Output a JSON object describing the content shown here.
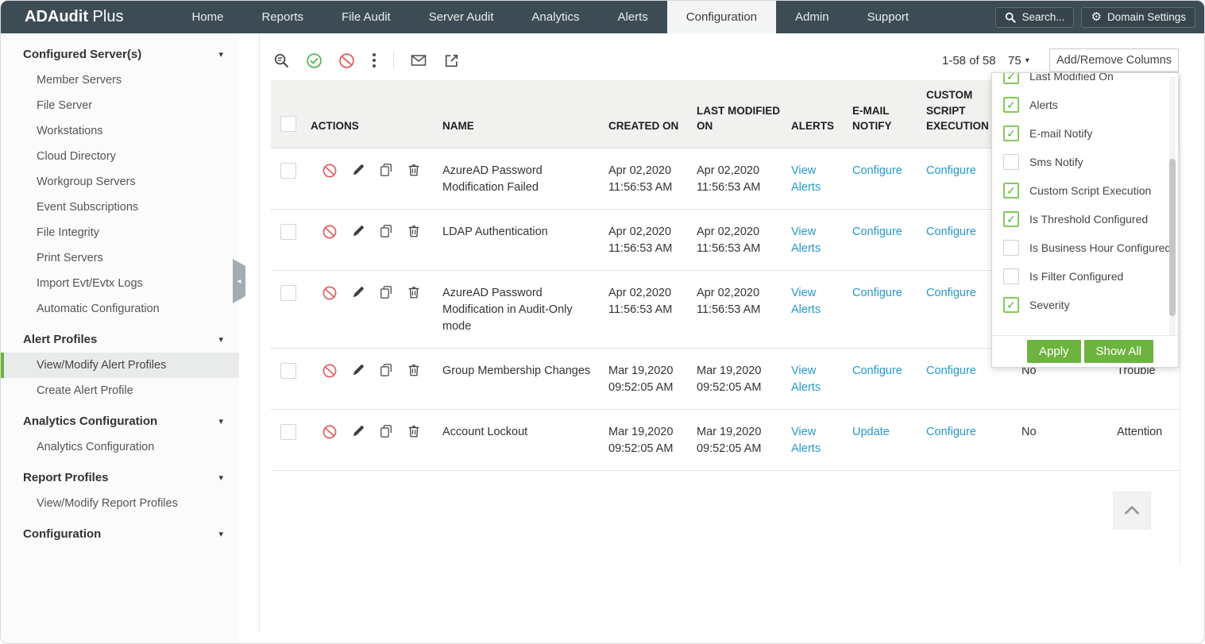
{
  "colors": {
    "navbar": "#3d4c54",
    "accent_green": "#6db33f",
    "link_blue": "#2598cc",
    "danger_red": "#e05f5f"
  },
  "navbar": {
    "brand_bold": "ADAudit",
    "brand_light": "Plus",
    "items": [
      {
        "label": "Home"
      },
      {
        "label": "Reports"
      },
      {
        "label": "File Audit"
      },
      {
        "label": "Server Audit"
      },
      {
        "label": "Analytics"
      },
      {
        "label": "Alerts"
      },
      {
        "label": "Configuration",
        "active": true
      },
      {
        "label": "Admin"
      },
      {
        "label": "Support"
      }
    ],
    "search_placeholder": "Search...",
    "domain_settings_label": "Domain Settings"
  },
  "sidebar": {
    "sections": [
      {
        "label": "Configured Server(s)",
        "items": [
          "Member Servers",
          "File Server",
          "Workstations",
          "Cloud Directory",
          "Workgroup Servers",
          "Event Subscriptions",
          "File Integrity",
          "Print Servers",
          "Import Evt/Evtx Logs",
          "Automatic Configuration"
        ]
      },
      {
        "label": "Alert Profiles",
        "items": [
          "View/Modify Alert Profiles",
          "Create Alert Profile"
        ],
        "selected": "View/Modify Alert Profiles"
      },
      {
        "label": "Analytics Configuration",
        "items": [
          "Analytics Configuration"
        ]
      },
      {
        "label": "Report Profiles",
        "items": [
          "View/Modify Report Profiles"
        ]
      },
      {
        "label": "Configuration",
        "items": []
      }
    ]
  },
  "toolbar": {
    "pagination": "1-58 of 58",
    "page_size": "75",
    "add_remove_columns_label": "Add/Remove Columns",
    "icons": [
      "filter-search-icon",
      "enable-check-icon",
      "disable-block-icon",
      "more-kebab-icon",
      "email-icon",
      "export-icon"
    ]
  },
  "table": {
    "headers": [
      "ACTIONS",
      "NAME",
      "CREATED ON",
      "LAST MODIFIED ON",
      "ALERTS",
      "E-MAIL NOTIFY",
      "CUSTOM SCRIPT EXECUTION"
    ],
    "rows": [
      {
        "name": "AzureAD Password Modification Failed",
        "created_on": "Apr 02,2020 11:56:53 AM",
        "last_modified_on": "Apr 02,2020 11:56:53 AM",
        "alerts": "View Alerts",
        "email_notify": "Configure",
        "custom_script": "Configure",
        "threshold": "",
        "severity": ""
      },
      {
        "name": "LDAP Authentication",
        "created_on": "Apr 02,2020 11:56:53 AM",
        "last_modified_on": "Apr 02,2020 11:56:53 AM",
        "alerts": "View Alerts",
        "email_notify": "Configure",
        "custom_script": "Configure",
        "threshold": "",
        "severity": ""
      },
      {
        "name": "AzureAD Password Modification in Audit-Only mode",
        "created_on": "Apr 02,2020 11:56:53 AM",
        "last_modified_on": "Apr 02,2020 11:56:53 AM",
        "alerts": "View Alerts",
        "email_notify": "Configure",
        "custom_script": "Configure",
        "threshold": "",
        "severity": ""
      },
      {
        "name": "Group Membership Changes",
        "created_on": "Mar 19,2020 09:52:05 AM",
        "last_modified_on": "Mar 19,2020 09:52:05 AM",
        "alerts": "View Alerts",
        "email_notify": "Configure",
        "custom_script": "Configure",
        "threshold": "No",
        "severity": "Trouble"
      },
      {
        "name": "Account Lockout",
        "created_on": "Mar 19,2020 09:52:05 AM",
        "last_modified_on": "Mar 19,2020 09:52:05 AM",
        "alerts": "View Alerts",
        "email_notify": "Update",
        "custom_script": "Configure",
        "threshold": "No",
        "severity": "Attention"
      }
    ]
  },
  "columns_dropdown": {
    "items": [
      {
        "label": "Last Modified On",
        "checked": true
      },
      {
        "label": "Alerts",
        "checked": true
      },
      {
        "label": "E-mail Notify",
        "checked": true
      },
      {
        "label": "Sms Notify",
        "checked": false
      },
      {
        "label": "Custom Script Execution",
        "checked": true
      },
      {
        "label": "Is Threshold Configured",
        "checked": true
      },
      {
        "label": "Is Business Hour Configured",
        "checked": false
      },
      {
        "label": "Is Filter Configured",
        "checked": false
      },
      {
        "label": "Severity",
        "checked": true
      }
    ],
    "apply_label": "Apply",
    "show_all_label": "Show All"
  }
}
